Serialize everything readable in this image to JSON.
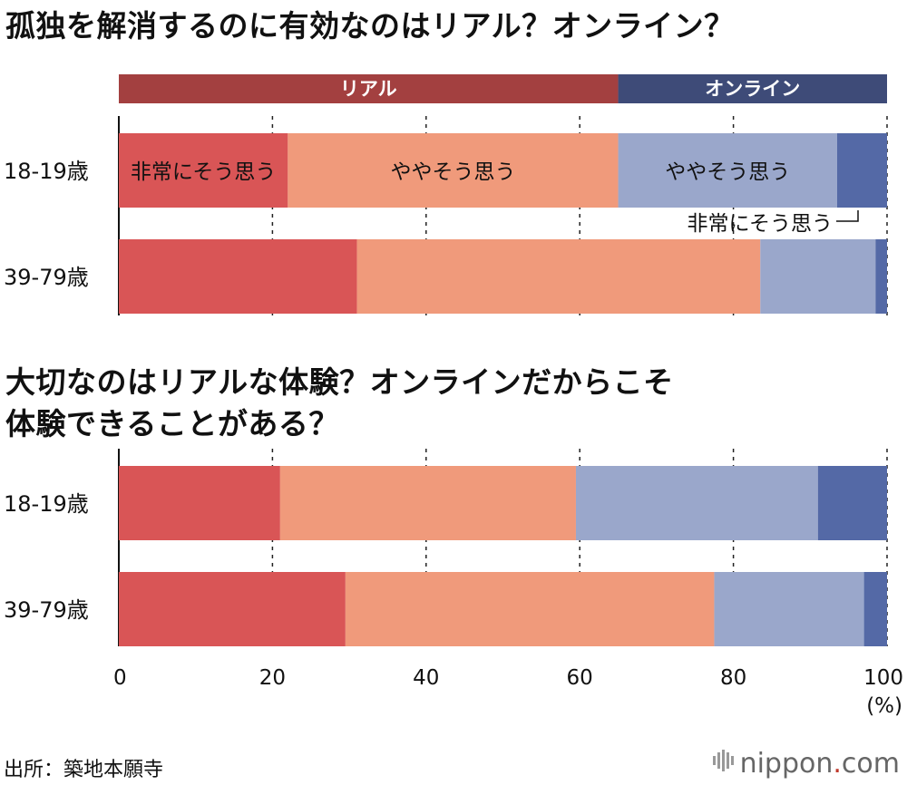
{
  "titles": {
    "chart1": "孤独を解消するのに有効なのはリアル？オンライン？",
    "chart2_line1": "大切なのはリアルな体験？オンラインだからこそ",
    "chart2_line2": "体験できることがある？"
  },
  "header": {
    "real_label": "リアル",
    "online_label": "オンライン",
    "real_color": "#a34040",
    "online_color": "#3e4b78"
  },
  "colors": {
    "strong_real": "#d95556",
    "some_real": "#f09a7b",
    "some_online": "#9aa7cb",
    "strong_online": "#5469a6"
  },
  "segment_labels": {
    "strong_real": "非常にそう思う",
    "some_real": "ややそう思う",
    "some_online": "ややそう思う",
    "strong_online": "非常にそう思う"
  },
  "chart_data": [
    {
      "type": "bar",
      "orientation": "horizontal",
      "stacked": true,
      "title": "孤独を解消するのに有効なのはリアル？オンライン？",
      "categories": [
        "18-19歳",
        "39-79歳"
      ],
      "series": [
        {
          "name": "リアル：非常にそう思う",
          "values": [
            22,
            31
          ]
        },
        {
          "name": "リアル：ややそう思う",
          "values": [
            43,
            52.5
          ]
        },
        {
          "name": "オンライン：ややそう思う",
          "values": [
            28.5,
            15
          ]
        },
        {
          "name": "オンライン：非常にそう思う",
          "values": [
            6.5,
            1.5
          ]
        }
      ]
    },
    {
      "type": "bar",
      "orientation": "horizontal",
      "stacked": true,
      "title": "大切なのはリアルな体験？オンラインだからこそ体験できることがある？",
      "categories": [
        "18-19歳",
        "39-79歳"
      ],
      "series": [
        {
          "name": "リアル：非常にそう思う",
          "values": [
            21,
            29.5
          ]
        },
        {
          "name": "リアル：ややそう思う",
          "values": [
            38.5,
            48
          ]
        },
        {
          "name": "オンライン：ややそう思う",
          "values": [
            31.5,
            19.5
          ]
        },
        {
          "name": "オンライン：非常にそう思う",
          "values": [
            9,
            3
          ]
        }
      ],
      "xlim": [
        0,
        100
      ],
      "xticks": [
        0,
        20,
        40,
        60,
        80,
        100
      ],
      "xunit": "(%)"
    }
  ],
  "axis": {
    "ticks": [
      "0",
      "20",
      "40",
      "60",
      "80",
      "100"
    ],
    "unit": "(%)"
  },
  "footer": {
    "source": "出所：築地本願寺",
    "logo_name": "nippon",
    "logo_dot": ".",
    "logo_tld": "com"
  }
}
